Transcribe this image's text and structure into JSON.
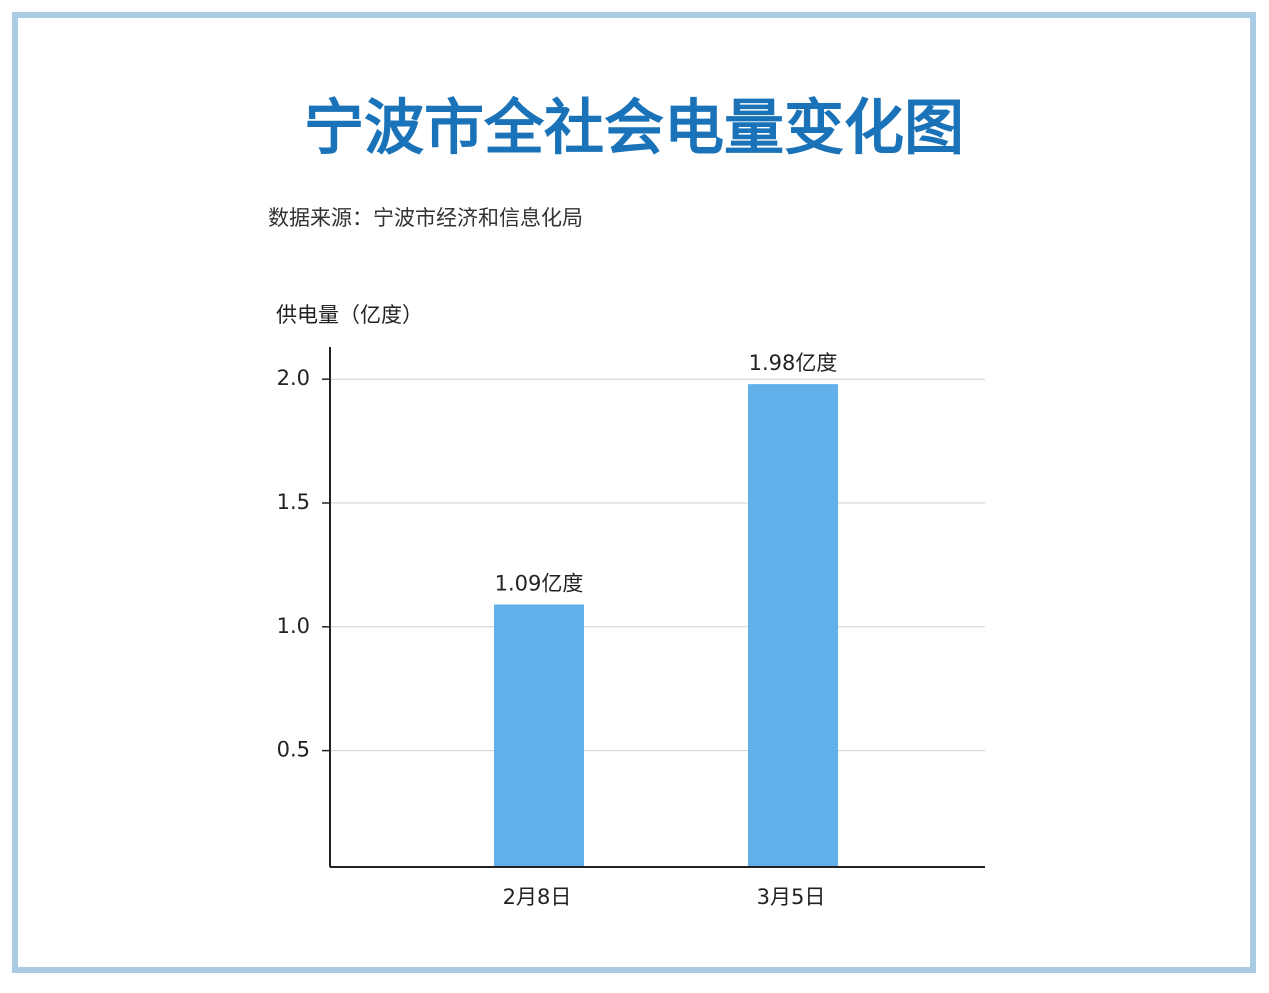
{
  "chart_data": {
    "type": "bar",
    "title": "宁波市全社会电量变化图",
    "subtitle": "数据来源：宁波市经济和信息化局",
    "y_label": "供电量（亿度）",
    "categories": [
      "2月8日",
      "3月5日"
    ],
    "values": [
      1.09,
      1.98
    ],
    "value_labels": [
      "1.09亿度",
      "1.98亿度"
    ],
    "color": "#62b0ea",
    "ylim": [
      0.03,
      2.13
    ],
    "yticks": [
      {
        "value": 0.5,
        "label": "0.5"
      },
      {
        "value": 1,
        "label": "1.0"
      },
      {
        "value": 1.5,
        "label": "1.5"
      },
      {
        "value": 2,
        "label": "2.0"
      }
    ],
    "grid": true
  }
}
